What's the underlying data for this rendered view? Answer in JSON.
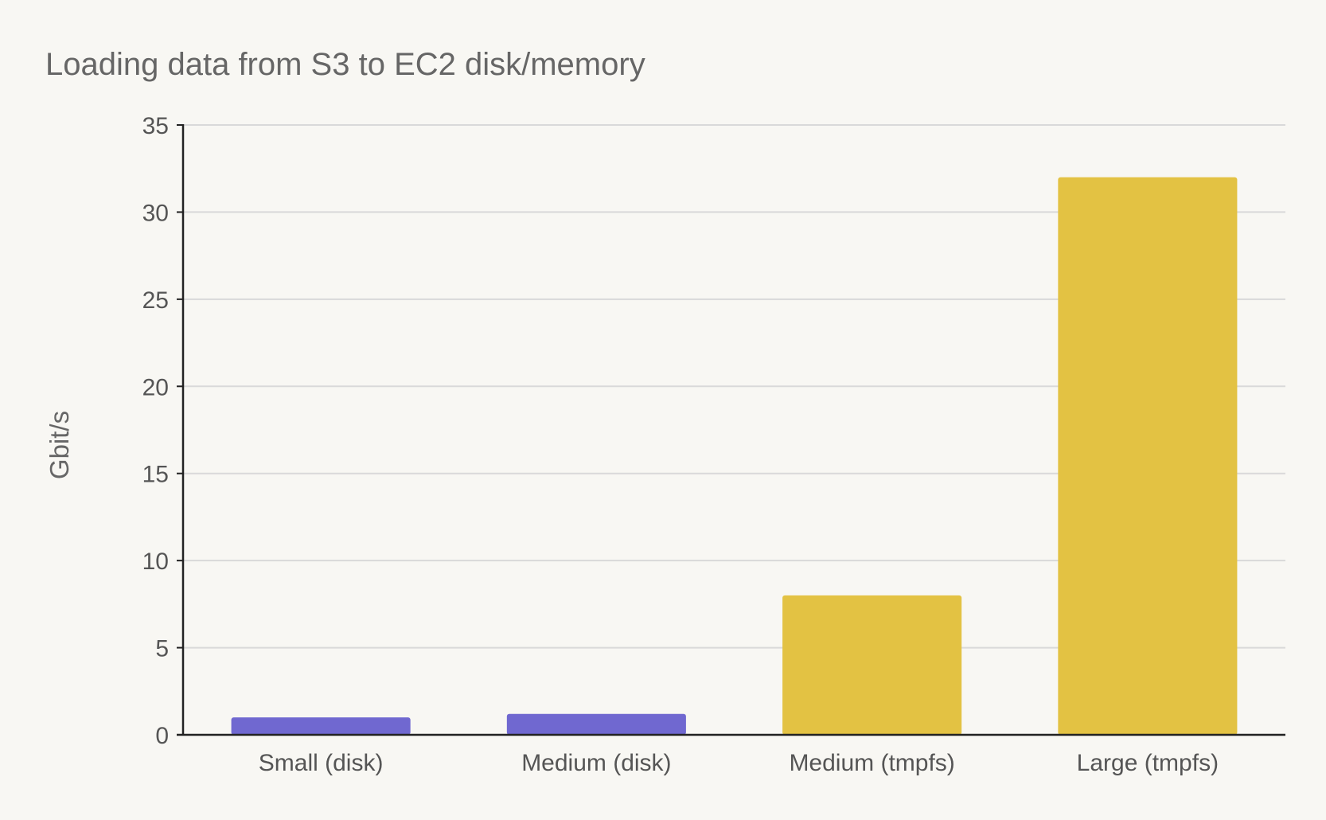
{
  "chart_data": {
    "type": "bar",
    "title": "Loading data from S3 to EC2 disk/memory",
    "xlabel": "",
    "ylabel": "Gbit/s",
    "ylim": [
      0,
      35
    ],
    "yticks": [
      0,
      5,
      10,
      15,
      20,
      25,
      30,
      35
    ],
    "ytick_labels": [
      "0",
      "5",
      "10",
      "15",
      "20",
      "25",
      "30",
      "35"
    ],
    "categories": [
      "Small (disk)",
      "Medium (disk)",
      "Medium (tmpfs)",
      "Large (tmpfs)"
    ],
    "values": [
      1.0,
      1.2,
      8.0,
      32.0
    ],
    "bar_colors": [
      "#7068d0",
      "#7068d0",
      "#e3c243",
      "#e3c243"
    ],
    "grid": true,
    "legend": "none"
  },
  "colors": {
    "background": "#f8f7f3",
    "grid": "#d9d9d9",
    "axis": "#222222"
  }
}
